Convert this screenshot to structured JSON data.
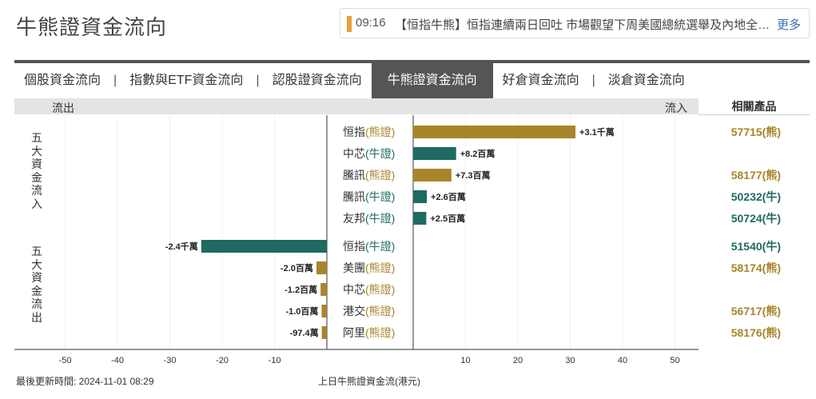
{
  "page": {
    "title": "牛熊證資金流向",
    "updated_label": "最後更新時間: 2024-11-01 08:29",
    "caption": "上日牛熊證資金流(港元)"
  },
  "ticker": {
    "time": "09:16",
    "text": "【恒指牛熊】恒指連續兩日回吐 市場觀望下周美國總統選舉及內地全…",
    "more": "更多"
  },
  "tabs": [
    {
      "label": "個股資金流向",
      "active": false
    },
    {
      "label": "指數與ETF資金流向",
      "active": false
    },
    {
      "label": "認股證資金流向",
      "active": false
    },
    {
      "label": "牛熊證資金流向",
      "active": true
    },
    {
      "label": "好倉資金流向",
      "active": false
    },
    {
      "label": "淡倉資金流向",
      "active": false
    }
  ],
  "table_header": {
    "outflow": "流出",
    "inflow": "流入",
    "related": "相關產品"
  },
  "sections": {
    "inflow_title": [
      "五",
      "大",
      "資",
      "金",
      "流",
      "入"
    ],
    "outflow_title": [
      "五",
      "大",
      "資",
      "金",
      "流",
      "出"
    ]
  },
  "colors": {
    "bull": "#1f6a62",
    "bear": "#a8852a",
    "bull_text": "#1f6a62",
    "bear_text": "#a8852a"
  },
  "chart_data": {
    "type": "bar",
    "orientation": "horizontal",
    "xlim": [
      -50,
      50
    ],
    "x_ticks": [
      -50,
      -40,
      -30,
      -20,
      -10,
      10,
      20,
      30,
      40,
      50
    ],
    "x_label": "上日牛熊證資金流(港元)",
    "series": [
      {
        "name": "五大資金流入",
        "rows": [
          {
            "underlying": "恒指",
            "kind": "熊證",
            "type": "bear",
            "value": 31.0,
            "label": "+3.1千萬",
            "product": "57715(熊)"
          },
          {
            "underlying": "中芯",
            "kind": "牛證",
            "type": "bull",
            "value": 8.2,
            "label": "+8.2百萬",
            "product": ""
          },
          {
            "underlying": "騰訊",
            "kind": "熊證",
            "type": "bear",
            "value": 7.3,
            "label": "+7.3百萬",
            "product": "58177(熊)"
          },
          {
            "underlying": "騰訊",
            "kind": "牛證",
            "type": "bull",
            "value": 2.6,
            "label": "+2.6百萬",
            "product": "50232(牛)"
          },
          {
            "underlying": "友邦",
            "kind": "牛證",
            "type": "bull",
            "value": 2.5,
            "label": "+2.5百萬",
            "product": "50724(牛)"
          }
        ]
      },
      {
        "name": "五大資金流出",
        "rows": [
          {
            "underlying": "恒指",
            "kind": "牛證",
            "type": "bull",
            "value": -24.0,
            "label": "-2.4千萬",
            "product": "51540(牛)"
          },
          {
            "underlying": "美團",
            "kind": "熊證",
            "type": "bear",
            "value": -2.0,
            "label": "-2.0百萬",
            "product": "58174(熊)"
          },
          {
            "underlying": "中芯",
            "kind": "熊證",
            "type": "bear",
            "value": -1.2,
            "label": "-1.2百萬",
            "product": ""
          },
          {
            "underlying": "港交",
            "kind": "熊證",
            "type": "bear",
            "value": -1.0,
            "label": "-1.0百萬",
            "product": "56717(熊)"
          },
          {
            "underlying": "阿里",
            "kind": "熊證",
            "type": "bear",
            "value": -0.974,
            "label": "-97.4萬",
            "product": "58176(熊)"
          }
        ]
      }
    ]
  }
}
